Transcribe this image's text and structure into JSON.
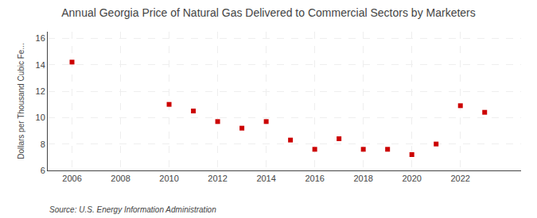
{
  "chart_data": {
    "type": "scatter",
    "title": "Annual Georgia Price of Natural Gas Delivered to Commercial Sectors by Marketers",
    "ylabel": "Dollars per Thousand Cubic Fe...",
    "annotations": [
      "Source: U.S. Energy Information Administration"
    ],
    "x": [
      2006,
      2010,
      2011,
      2012,
      2013,
      2014,
      2015,
      2016,
      2017,
      2018,
      2019,
      2020,
      2021,
      2022,
      2023
    ],
    "values": [
      14.2,
      11.0,
      10.5,
      9.7,
      9.2,
      9.7,
      8.3,
      7.6,
      8.4,
      7.6,
      7.6,
      7.2,
      8.0,
      10.9,
      10.4
    ],
    "color": "#cc0000",
    "marker": "square",
    "xlim": [
      2005.0,
      2024.5
    ],
    "ylim": [
      6,
      16.5
    ],
    "xticks": [
      2006,
      2008,
      2010,
      2012,
      2014,
      2016,
      2018,
      2020,
      2022
    ],
    "yticks": [
      6,
      8,
      10,
      12,
      14,
      16
    ],
    "grid": true
  }
}
